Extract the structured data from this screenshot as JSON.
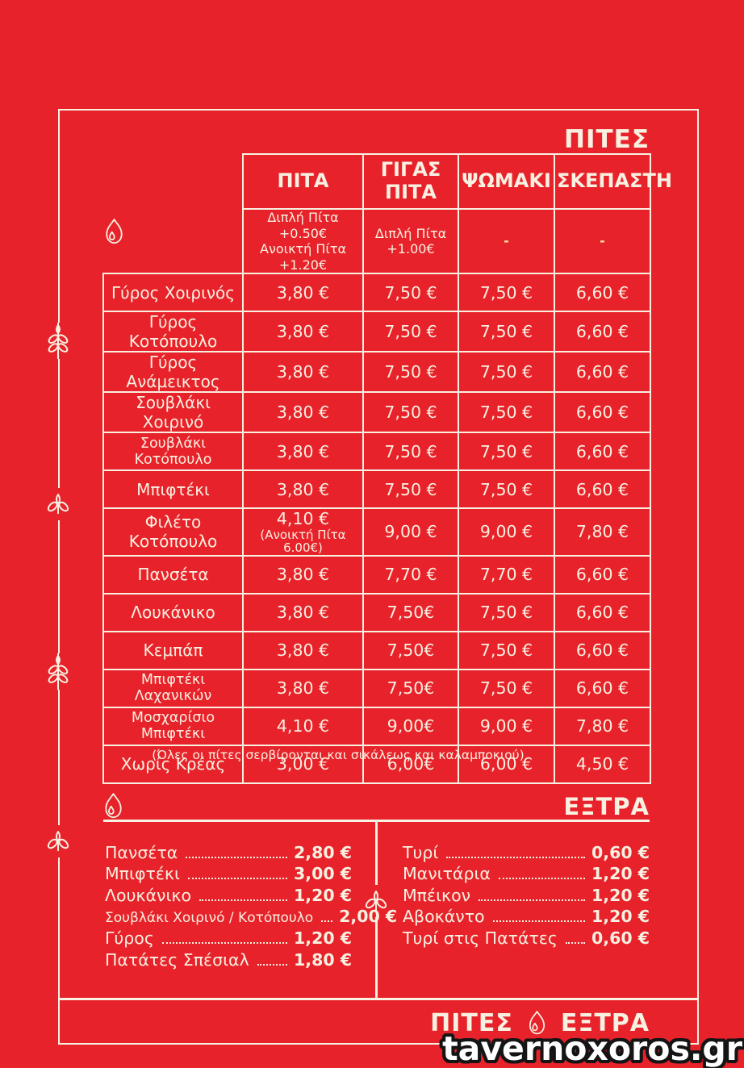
{
  "colors": {
    "background": "#e8222a",
    "text_cream": "#f8f0e1",
    "accent_yellow": "#f5e9a3"
  },
  "pites": {
    "heading": "ΠΙΤΕΣ",
    "columns": [
      "ΠΙΤΑ",
      "ΓΙΓΑΣ ΠΙΤΑ",
      "ΨΩΜΑΚΙ",
      "ΣΚΕΠΑΣΤΗ"
    ],
    "column_notes": [
      [
        "Διπλή Πίτα +0.50€",
        "Ανοικτή Πίτα +1.20€"
      ],
      [
        "Διπλή Πίτα",
        "+1.00€"
      ],
      [
        "-"
      ],
      [
        "-"
      ]
    ],
    "rows": [
      {
        "name": "Γύρος Χοιρινός",
        "prices": [
          "3,80 €",
          "7,50 €",
          "7,50 €",
          "6,60 €"
        ]
      },
      {
        "name": "Γύρος Κοτόπουλο",
        "prices": [
          "3,80 €",
          "7,50 €",
          "7,50 €",
          "6,60 €"
        ]
      },
      {
        "name": "Γύρος Ανάμεικτος",
        "prices": [
          "3,80 €",
          "7,50 €",
          "7,50 €",
          "6,60 €"
        ]
      },
      {
        "name": "Σουβλάκι Χοιρινό",
        "prices": [
          "3,80 €",
          "7,50 €",
          "7,50 €",
          "6,60 €"
        ]
      },
      {
        "name": "Σουβλάκι Κοτόπουλο",
        "prices": [
          "3,80 €",
          "7,50 €",
          "7,50 €",
          "6,60 €"
        ]
      },
      {
        "name": "Μπιφτέκι",
        "prices": [
          "3,80 €",
          "7,50 €",
          "7,50 €",
          "6,60 €"
        ]
      },
      {
        "name": "Φιλέτο Κοτόπουλο",
        "prices": [
          "4,10 €",
          "9,00 €",
          "9,00 €",
          "7,80 €"
        ],
        "pita_note": "(Ανοικτή Πίτα 6.00€)"
      },
      {
        "name": "Πανσέτα",
        "prices": [
          "3,80 €",
          "7,70 €",
          "7,70 €",
          "6,60 €"
        ]
      },
      {
        "name": "Λουκάνικο",
        "prices": [
          "3,80 €",
          "7,50€",
          "7,50 €",
          "6,60 €"
        ]
      },
      {
        "name": "Κεμπάπ",
        "prices": [
          "3,80 €",
          "7,50€",
          "7,50 €",
          "6,60 €"
        ]
      },
      {
        "name": "Μπιφτέκι Λαχανικών",
        "prices": [
          "3,80 €",
          "7,50€",
          "7,50 €",
          "6,60 €"
        ]
      },
      {
        "name": "Μοσχαρίσιο Μπιφτέκι",
        "prices": [
          "4,10 €",
          "9,00€",
          "9,00 €",
          "7,80 €"
        ]
      },
      {
        "name": "Χωρίς Κρέας",
        "prices": [
          "3,00 €",
          "6,00€",
          "6,00 €",
          "4,50 €"
        ]
      }
    ],
    "footnote": "(Όλες οι πίτες σερβίρονται και σικάλεως και καλαμποκιού)"
  },
  "extra": {
    "heading": "ΕΞΤΡΑ",
    "left": [
      {
        "label": "Πανσέτα",
        "price": "2,80 €"
      },
      {
        "label": "Μπιφτέκι",
        "price": "3,00 €"
      },
      {
        "label": "Λουκάνικο",
        "price": "1,20 €"
      },
      {
        "label": "Σουβλάκι Χοιρινό / Κοτόπουλο",
        "price": "2,00 €"
      },
      {
        "label": "Γύρος",
        "price": "1,20 €"
      },
      {
        "label": "Πατάτες Σπέσιαλ",
        "price": "1,80 €"
      }
    ],
    "right": [
      {
        "label": "Τυρί",
        "price": "0,60 €"
      },
      {
        "label": "Μανιτάρια",
        "price": "1,20 €"
      },
      {
        "label": "Μπέικον",
        "price": "1,20 €"
      },
      {
        "label": "Αβοκάντο",
        "price": "1,20 €"
      },
      {
        "label": "Τυρί στις Πατάτες",
        "price": "0,60 €"
      }
    ]
  },
  "footer": {
    "pites_label": "ΠΙΤΕΣ",
    "extra_label": "ΕΞΤΡΑ"
  },
  "watermark": "tavernoxoros.gr"
}
